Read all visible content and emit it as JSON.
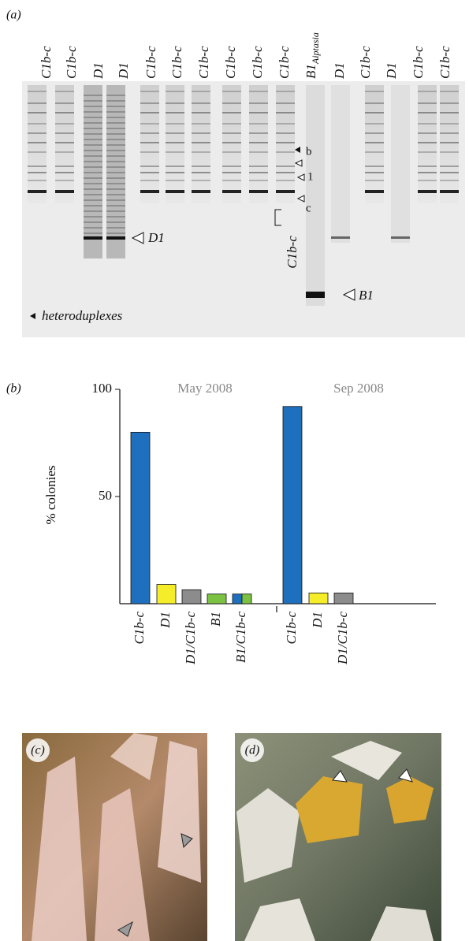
{
  "panel_a": {
    "label": "(a)",
    "lanes": [
      "C1b-c",
      "C1b-c",
      "D1",
      "D1",
      "C1b-c",
      "C1b-c",
      "C1b-c",
      "C1b-c",
      "C1b-c",
      "C1b-c",
      {
        "text": "B1",
        "subscript": "Aiptasia"
      },
      "D1",
      "C1b-c",
      "D1",
      "C1b-c",
      "C1b-c"
    ],
    "annotations": {
      "d1": "D1",
      "b1": "B1",
      "b": "b",
      "one": "1",
      "c": "c",
      "bracket": "C1b-c",
      "heteroduplexes": "heteroduplexes"
    }
  },
  "chart_data": {
    "type": "bar",
    "panel_label": "(b)",
    "ylabel": "% colonies",
    "ylim": [
      0,
      100
    ],
    "yticks": [
      50,
      100
    ],
    "groups": [
      {
        "name": "May 2008",
        "categories": [
          "C1b-c",
          "D1",
          "D1/C1b-c",
          "B1",
          "B1/C1b-c"
        ],
        "values": [
          80,
          9,
          6.5,
          4.5,
          4.5
        ],
        "colors": [
          "#1f6fbf",
          "#f5ec2a",
          "#8c8c8c",
          "#7cc242",
          [
            "#1f6fbf",
            "#7cc242"
          ]
        ]
      },
      {
        "name": "Sep 2008",
        "categories": [
          "C1b-c",
          "D1",
          "D1/C1b-c"
        ],
        "values": [
          92,
          5,
          5
        ],
        "colors": [
          "#1f6fbf",
          "#f5ec2a",
          "#8c8c8c"
        ]
      }
    ]
  },
  "panel_c": {
    "label": "(c)"
  },
  "panel_d": {
    "label": "(d)"
  }
}
